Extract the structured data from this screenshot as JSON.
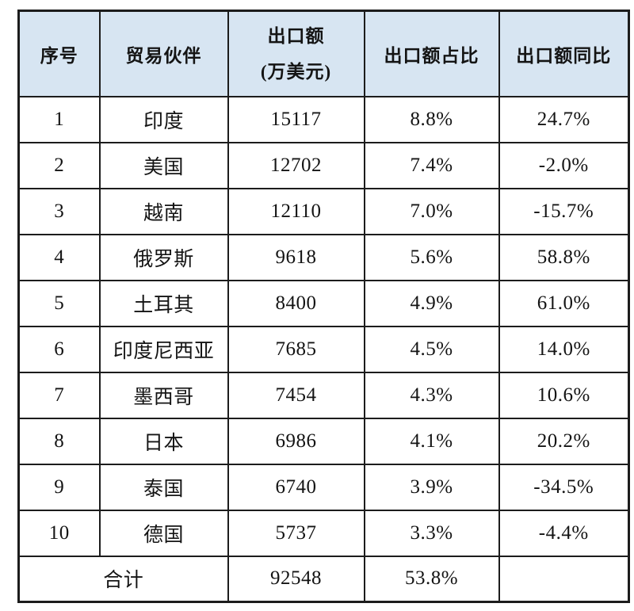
{
  "colors": {
    "header_bg": "#d7e5f2",
    "border": "#1c1c1c",
    "text": "#141414",
    "page_bg": "#ffffff"
  },
  "table": {
    "headers": {
      "index": "序号",
      "partner": "贸易伙伴",
      "export_value_line1": "出口额",
      "export_value_line2": "(万美元)",
      "export_share": "出口额占比",
      "export_yoy": "出口额同比"
    },
    "rows": [
      {
        "no": "1",
        "partner": "印度",
        "value": "15117",
        "share": "8.8%",
        "yoy": "24.7%"
      },
      {
        "no": "2",
        "partner": "美国",
        "value": "12702",
        "share": "7.4%",
        "yoy": "-2.0%"
      },
      {
        "no": "3",
        "partner": "越南",
        "value": "12110",
        "share": "7.0%",
        "yoy": "-15.7%"
      },
      {
        "no": "4",
        "partner": "俄罗斯",
        "value": "9618",
        "share": "5.6%",
        "yoy": "58.8%"
      },
      {
        "no": "5",
        "partner": "土耳其",
        "value": "8400",
        "share": "4.9%",
        "yoy": "61.0%"
      },
      {
        "no": "6",
        "partner": "印度尼西亚",
        "value": "7685",
        "share": "4.5%",
        "yoy": "14.0%"
      },
      {
        "no": "7",
        "partner": "墨西哥",
        "value": "7454",
        "share": "4.3%",
        "yoy": "10.6%"
      },
      {
        "no": "8",
        "partner": "日本",
        "value": "6986",
        "share": "4.1%",
        "yoy": "20.2%"
      },
      {
        "no": "9",
        "partner": "泰国",
        "value": "6740",
        "share": "3.9%",
        "yoy": "-34.5%"
      },
      {
        "no": "10",
        "partner": "德国",
        "value": "5737",
        "share": "3.3%",
        "yoy": "-4.4%"
      }
    ],
    "total": {
      "label": "合计",
      "value": "92548",
      "share": "53.8%",
      "yoy": ""
    }
  }
}
